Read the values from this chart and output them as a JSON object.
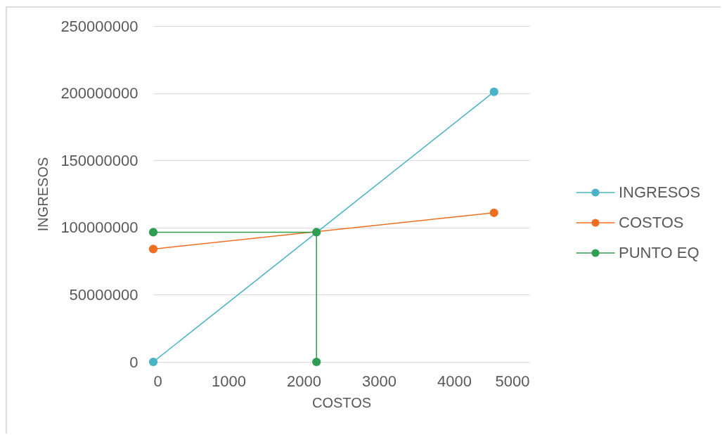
{
  "chart_data": {
    "type": "line",
    "xlabel": "COSTOS",
    "ylabel": "INGRESOS",
    "xlim": [
      0,
      5000
    ],
    "xticks": [
      0,
      1000,
      2000,
      3000,
      4000,
      5000
    ],
    "ylim": [
      0,
      250000000
    ],
    "yticks": [
      0,
      50000000,
      100000000,
      150000000,
      200000000,
      250000000
    ],
    "grid": "y",
    "legend": "right",
    "marker": "circle",
    "series": [
      {
        "name": "INGRESOS",
        "color": "#4bb3c6",
        "x": [
          0,
          4530
        ],
        "values": [
          0,
          201000000
        ]
      },
      {
        "name": "COSTOS",
        "color": "#ef6e22",
        "x": [
          0,
          4530
        ],
        "values": [
          84000000,
          111000000
        ]
      },
      {
        "name": "PUNTO EQ",
        "color": "#2f9e52",
        "x": [
          0,
          2170,
          2170
        ],
        "values": [
          96500000,
          96500000,
          0
        ]
      }
    ]
  }
}
